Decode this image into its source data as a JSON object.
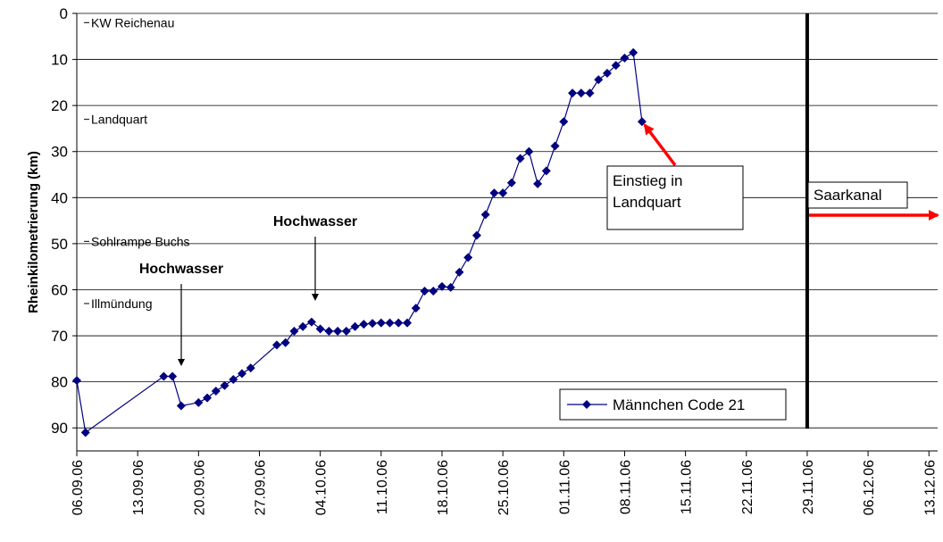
{
  "chart_data": {
    "type": "line",
    "y_label": "Rheinkilometrierung (km)",
    "ylim": [
      95,
      0
    ],
    "yticks": [
      0,
      10,
      20,
      30,
      40,
      50,
      60,
      70,
      80,
      90
    ],
    "grid": true,
    "xlim": [
      "06.09.06",
      "14.12.06"
    ],
    "xticks": [
      "06.09.06",
      "13.09.06",
      "20.09.06",
      "27.09.06",
      "04.10.06",
      "11.10.06",
      "18.10.06",
      "25.10.06",
      "01.11.06",
      "08.11.06",
      "15.11.06",
      "22.11.06",
      "29.11.06",
      "06.12.06",
      "13.12.06"
    ],
    "x": [
      "06.09.06",
      "07.09.06",
      "16.09.06",
      "17.09.06",
      "18.09.06",
      "20.09.06",
      "21.09.06",
      "22.09.06",
      "23.09.06",
      "24.09.06",
      "25.09.06",
      "26.09.06",
      "29.09.06",
      "30.09.06",
      "01.10.06",
      "02.10.06",
      "03.10.06",
      "04.10.06",
      "05.10.06",
      "06.10.06",
      "07.10.06",
      "08.10.06",
      "09.10.06",
      "10.10.06",
      "11.10.06",
      "12.10.06",
      "13.10.06",
      "14.10.06",
      "15.10.06",
      "16.10.06",
      "17.10.06",
      "18.10.06",
      "19.10.06",
      "20.10.06",
      "21.10.06",
      "22.10.06",
      "23.10.06",
      "24.10.06",
      "25.10.06",
      "26.10.06",
      "27.10.06",
      "28.10.06",
      "29.10.06",
      "30.10.06",
      "31.10.06",
      "01.11.06",
      "02.11.06",
      "03.11.06",
      "04.11.06",
      "05.11.06",
      "06.11.06",
      "07.11.06",
      "08.11.06",
      "09.11.06",
      "10.11.06"
    ],
    "series": [
      {
        "name": "Männchen Code 21",
        "color": "#000080",
        "values": [
          79.7,
          91,
          78.8,
          78.8,
          85.2,
          84.5,
          83.5,
          82,
          80.8,
          79.5,
          78.2,
          77,
          72,
          71.5,
          69,
          68,
          67,
          68.5,
          69,
          69,
          69,
          68,
          67.5,
          67.3,
          67.2,
          67.2,
          67.2,
          67.2,
          64,
          60.3,
          60.3,
          59.3,
          59.5,
          56.2,
          53,
          48.2,
          43.7,
          39,
          39,
          36.8,
          31.5,
          30,
          37,
          34.2,
          28.8,
          23.5,
          17.3,
          17.3,
          17.3,
          14.4,
          13,
          11.3,
          9.7,
          8.5,
          23.5
        ]
      }
    ],
    "legend": "lower right",
    "reference_labels": [
      {
        "label": "KW Reichenau",
        "value": 2
      },
      {
        "label": "Landquart",
        "value": 23
      },
      {
        "label": "Sohlrampe Buchs",
        "value": 49.5
      },
      {
        "label": "Illmündung",
        "value": 63
      }
    ],
    "annotations": [
      "Hochwasser",
      "Hochwasser"
    ],
    "entry_note": [
      "Einstieg in",
      "Landquart"
    ],
    "arrow_color": "#ff0000",
    "vertical_line": {
      "x": "29.11.06",
      "color": "#000000",
      "label": "Saarkanal"
    }
  }
}
